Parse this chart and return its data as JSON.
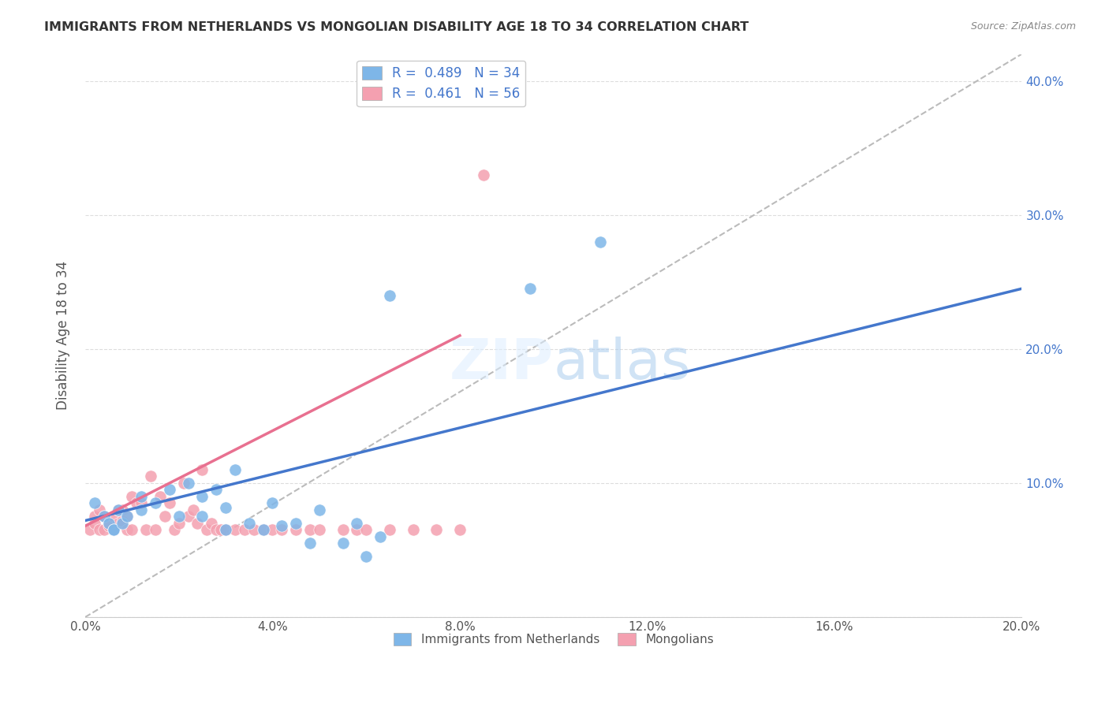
{
  "title": "IMMIGRANTS FROM NETHERLANDS VS MONGOLIAN DISABILITY AGE 18 TO 34 CORRELATION CHART",
  "source": "Source: ZipAtlas.com",
  "xlabel": "",
  "ylabel": "Disability Age 18 to 34",
  "xlim": [
    0.0,
    0.2
  ],
  "ylim": [
    0.0,
    0.42
  ],
  "x_ticks": [
    0.0,
    0.04,
    0.08,
    0.12,
    0.16,
    0.2
  ],
  "y_ticks": [
    0.0,
    0.1,
    0.2,
    0.3,
    0.4
  ],
  "x_tick_labels": [
    "0.0%",
    "4.0%",
    "8.0%",
    "12.0%",
    "16.0%",
    "20.0%"
  ],
  "y_tick_labels_right": [
    "",
    "10.0%",
    "20.0%",
    "30.0%",
    "40.0%"
  ],
  "legend_label1": "Immigrants from Netherlands",
  "legend_label2": "Mongolians",
  "R1": 0.489,
  "N1": 34,
  "R2": 0.461,
  "N2": 56,
  "color_blue": "#7EB6E8",
  "color_pink": "#F4A0B0",
  "color_blue_line": "#4477CC",
  "color_pink_line": "#E87090",
  "blue_scatter_x": [
    0.012,
    0.012,
    0.015,
    0.018,
    0.02,
    0.022,
    0.025,
    0.025,
    0.028,
    0.03,
    0.03,
    0.032,
    0.035,
    0.038,
    0.04,
    0.042,
    0.045,
    0.048,
    0.05,
    0.055,
    0.058,
    0.06,
    0.063,
    0.065,
    0.002,
    0.004,
    0.005,
    0.006,
    0.006,
    0.007,
    0.008,
    0.009,
    0.095,
    0.11
  ],
  "blue_scatter_y": [
    0.09,
    0.08,
    0.085,
    0.095,
    0.075,
    0.1,
    0.075,
    0.09,
    0.095,
    0.082,
    0.065,
    0.11,
    0.07,
    0.065,
    0.085,
    0.068,
    0.07,
    0.055,
    0.08,
    0.055,
    0.07,
    0.045,
    0.06,
    0.24,
    0.085,
    0.075,
    0.07,
    0.065,
    0.065,
    0.08,
    0.07,
    0.075,
    0.245,
    0.28
  ],
  "pink_scatter_x": [
    0.001,
    0.002,
    0.002,
    0.003,
    0.003,
    0.004,
    0.004,
    0.005,
    0.005,
    0.006,
    0.006,
    0.007,
    0.007,
    0.008,
    0.008,
    0.009,
    0.009,
    0.01,
    0.01,
    0.011,
    0.012,
    0.013,
    0.014,
    0.015,
    0.016,
    0.017,
    0.018,
    0.019,
    0.02,
    0.021,
    0.022,
    0.023,
    0.024,
    0.025,
    0.026,
    0.027,
    0.028,
    0.029,
    0.03,
    0.032,
    0.034,
    0.036,
    0.038,
    0.04,
    0.042,
    0.045,
    0.048,
    0.05,
    0.055,
    0.058,
    0.06,
    0.065,
    0.07,
    0.075,
    0.08,
    0.085
  ],
  "pink_scatter_y": [
    0.065,
    0.075,
    0.07,
    0.08,
    0.065,
    0.065,
    0.075,
    0.07,
    0.068,
    0.075,
    0.065,
    0.08,
    0.07,
    0.08,
    0.072,
    0.075,
    0.065,
    0.09,
    0.065,
    0.085,
    0.085,
    0.065,
    0.105,
    0.065,
    0.09,
    0.075,
    0.085,
    0.065,
    0.07,
    0.1,
    0.075,
    0.08,
    0.07,
    0.11,
    0.065,
    0.07,
    0.065,
    0.065,
    0.065,
    0.065,
    0.065,
    0.065,
    0.065,
    0.065,
    0.065,
    0.065,
    0.065,
    0.065,
    0.065,
    0.065,
    0.065,
    0.065,
    0.065,
    0.065,
    0.065,
    0.33
  ],
  "blue_line_x": [
    0.0,
    0.2
  ],
  "blue_line_y": [
    0.072,
    0.245
  ],
  "pink_line_x": [
    0.0,
    0.08
  ],
  "pink_line_y": [
    0.068,
    0.21
  ],
  "dashed_line_x": [
    0.0,
    0.2
  ],
  "dashed_line_y": [
    0.0,
    0.42
  ]
}
